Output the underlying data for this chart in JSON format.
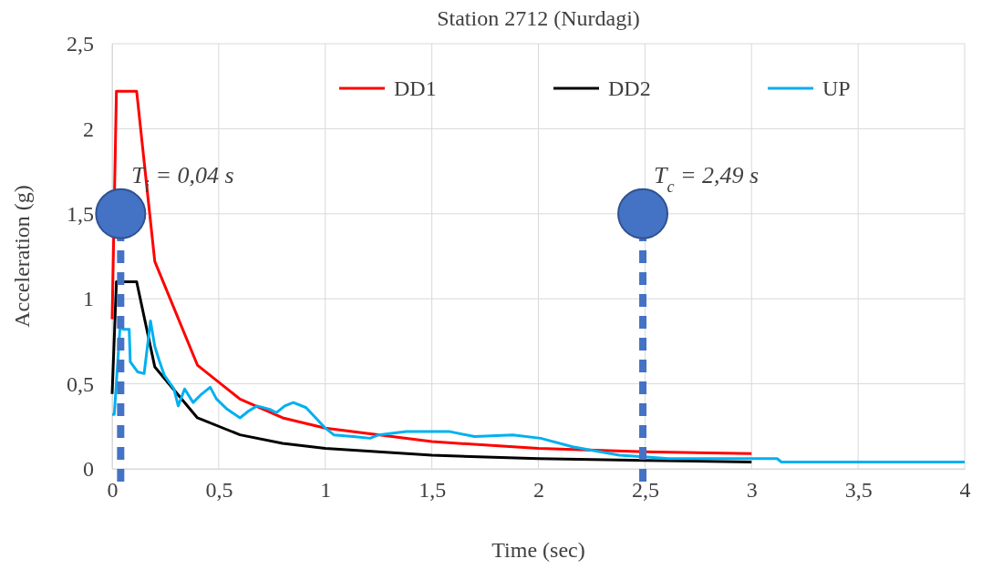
{
  "chart_data": {
    "type": "line",
    "title": "Station 2712 (Nurdagi)",
    "xlabel": "Time (sec)",
    "ylabel": "Acceleration (g)",
    "xlim": [
      0,
      4
    ],
    "ylim": [
      0,
      2.5
    ],
    "xticks": [
      0,
      {
        "value": 0.5,
        "label": "0,5"
      },
      1,
      {
        "value": 1.5,
        "label": "1,5"
      },
      2,
      {
        "value": 2.5,
        "label": "2,5"
      },
      3,
      {
        "value": 3.5,
        "label": "3,5"
      },
      4
    ],
    "yticks": [
      0,
      {
        "value": 0.5,
        "label": "0,5"
      },
      1,
      {
        "value": 1.5,
        "label": "1,5"
      },
      2,
      {
        "value": 2.5,
        "label": "2,5"
      }
    ],
    "grid": true,
    "legend": "top",
    "marker": "none",
    "line_style": "solid",
    "series": [
      {
        "name": "DD1",
        "color": "#ff0000",
        "x": [
          0,
          0.02,
          0.115,
          0.2,
          0.4,
          0.6,
          0.8,
          1,
          1.5,
          2,
          2.5,
          3
        ],
        "values": [
          0.88,
          2.22,
          2.22,
          1.22,
          0.61,
          0.41,
          0.3,
          0.24,
          0.16,
          0.12,
          0.1,
          0.09
        ]
      },
      {
        "name": "DD2",
        "color": "#000000",
        "x": [
          0,
          0.02,
          0.115,
          0.2,
          0.4,
          0.6,
          0.8,
          1,
          1.5,
          2,
          2.5,
          3
        ],
        "values": [
          0.44,
          1.1,
          1.1,
          0.6,
          0.3,
          0.2,
          0.15,
          0.12,
          0.08,
          0.06,
          0.05,
          0.04
        ]
      },
      {
        "name": "UP",
        "color": "#00b0f0",
        "x": [
          0,
          0.01,
          0.04,
          0.05,
          0.08,
          0.085,
          0.12,
          0.15,
          0.18,
          0.2,
          0.22,
          0.245,
          0.29,
          0.31,
          0.34,
          0.38,
          0.42,
          0.46,
          0.49,
          0.54,
          0.6,
          0.64,
          0.68,
          0.74,
          0.77,
          0.81,
          0.85,
          0.91,
          1,
          1.04,
          1.13,
          1.21,
          1.25,
          1.38,
          1.58,
          1.7,
          1.88,
          2.01,
          2.16,
          2.29,
          2.38,
          2.51,
          2.61,
          3.12,
          3.14,
          4
        ],
        "values": [
          0.32,
          0.32,
          0.89,
          0.82,
          0.82,
          0.63,
          0.57,
          0.56,
          0.87,
          0.72,
          0.64,
          0.55,
          0.47,
          0.37,
          0.47,
          0.39,
          0.44,
          0.48,
          0.41,
          0.35,
          0.3,
          0.34,
          0.37,
          0.35,
          0.33,
          0.37,
          0.39,
          0.36,
          0.24,
          0.2,
          0.19,
          0.18,
          0.2,
          0.22,
          0.22,
          0.19,
          0.2,
          0.18,
          0.13,
          0.1,
          0.08,
          0.07,
          0.06,
          0.06,
          0.04,
          0.04
        ]
      }
    ],
    "ref_lines": [
      {
        "axis": "x",
        "value": 0.04,
        "label": "T$_{i}$ = 0,04 s",
        "color": "#4472c4",
        "line_style": "dashed"
      },
      {
        "axis": "x",
        "value": 2.49,
        "label": "T$_{c}$ = 2,49 s",
        "color": "#4472c4",
        "line_style": "dashed"
      }
    ]
  }
}
